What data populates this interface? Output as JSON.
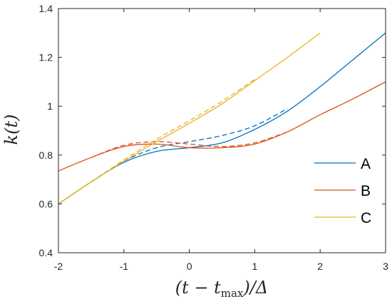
{
  "chart_data": {
    "type": "line",
    "xlabel": "(t − t_max)/Δ",
    "ylabel": "k(t)",
    "xlim": [
      -2,
      3
    ],
    "ylim": [
      0.4,
      1.4
    ],
    "xticks": [
      -2,
      -1,
      0,
      1,
      2,
      3
    ],
    "yticks": [
      0.4,
      0.6,
      0.8,
      1.0,
      1.2,
      1.4
    ],
    "xtick_labels": [
      "-2",
      "-1",
      "0",
      "1",
      "2",
      "3"
    ],
    "ytick_labels": [
      "0.4",
      "0.6",
      "0.8",
      "1",
      "1.2",
      "1.4"
    ],
    "grid": false,
    "box": true,
    "legend_position": "right",
    "series": [
      {
        "name": "A",
        "color": "#0072BD",
        "style": "solid",
        "x": [
          -2,
          -1.5,
          -1,
          -0.5,
          0,
          0.5,
          1,
          1.5,
          2,
          2.5,
          3
        ],
        "y": [
          0.6,
          0.69,
          0.77,
          0.815,
          0.83,
          0.85,
          0.905,
          0.98,
          1.08,
          1.19,
          1.3
        ]
      },
      {
        "name": "A (dashed)",
        "color": "#0072BD",
        "style": "dashed",
        "x": [
          -2,
          -1.5,
          -1,
          -0.5,
          0,
          0.5,
          1,
          1.5
        ],
        "y": [
          0.6,
          0.69,
          0.775,
          0.83,
          0.855,
          0.88,
          0.92,
          0.99
        ]
      },
      {
        "name": "B",
        "color": "#D95319",
        "style": "solid",
        "x": [
          -2,
          -1.5,
          -1,
          -0.5,
          0,
          0.5,
          1,
          1.5,
          2,
          2.5,
          3
        ],
        "y": [
          0.735,
          0.79,
          0.835,
          0.845,
          0.83,
          0.83,
          0.845,
          0.895,
          0.965,
          1.03,
          1.1
        ]
      },
      {
        "name": "B (dashed)",
        "color": "#D95319",
        "style": "dashed",
        "x": [
          -1.5,
          -1,
          -0.5,
          0,
          0.5,
          1,
          1.5
        ],
        "y": [
          0.79,
          0.84,
          0.855,
          0.845,
          0.835,
          0.85,
          0.895
        ]
      },
      {
        "name": "C",
        "color": "#EDB120",
        "style": "solid",
        "x": [
          -2,
          -1.5,
          -1,
          -0.5,
          0,
          0.5,
          1,
          1.5,
          2
        ],
        "y": [
          0.6,
          0.69,
          0.775,
          0.855,
          0.93,
          1.01,
          1.105,
          1.2,
          1.3
        ]
      },
      {
        "name": "C (dashed)",
        "color": "#EDB120",
        "style": "dashed",
        "x": [
          -2,
          -1.5,
          -1,
          -0.5,
          0,
          0.5,
          1
        ],
        "y": [
          0.6,
          0.69,
          0.78,
          0.865,
          0.94,
          1.02,
          1.11
        ]
      }
    ],
    "legend": [
      {
        "label": "A",
        "color": "#0072BD"
      },
      {
        "label": "B",
        "color": "#D95319"
      },
      {
        "label": "C",
        "color": "#EDB120"
      }
    ]
  }
}
